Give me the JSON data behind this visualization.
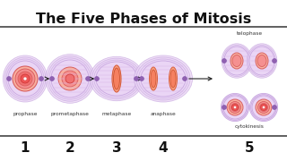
{
  "title": "The Five Phases of Mitosis",
  "title_fontsize": 11.5,
  "background_color": "#ffffff",
  "numbers": [
    "1",
    "2",
    "3",
    "4",
    "5"
  ],
  "cell_outer_color": "#ead5f5",
  "cell_edge_color": "#c8a8e0",
  "nucleus_fill": "#f5a0a0",
  "nucleus_edge": "#d86060",
  "chromatin_fill": "#e86060",
  "chromatin_edge": "#c04040",
  "spindle_color": "#d8b8e8",
  "arrow_color": "#222222",
  "line_color": "#444444",
  "label_color": "#333333",
  "number_color": "#111111",
  "dot_color": "#ffffff",
  "dot_edge": "#d86060"
}
